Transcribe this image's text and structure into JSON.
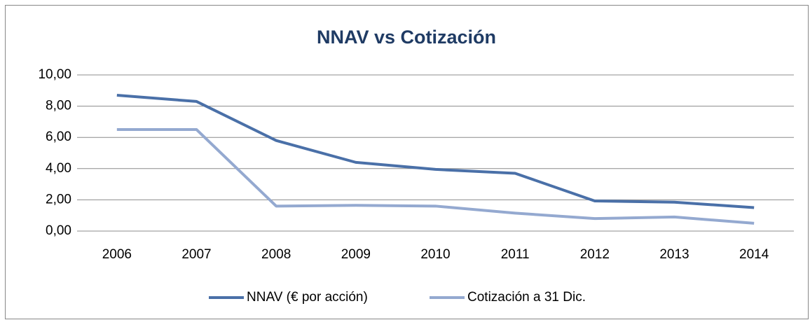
{
  "chart_data": {
    "type": "line",
    "title": "NNAV vs Cotización",
    "categories": [
      "2006",
      "2007",
      "2008",
      "2009",
      "2010",
      "2011",
      "2012",
      "2013",
      "2014"
    ],
    "series": [
      {
        "name": "NNAV (€ por acción)",
        "color": "#4a70a8",
        "values": [
          8.7,
          8.3,
          5.8,
          4.4,
          3.95,
          3.7,
          1.93,
          1.85,
          1.5
        ]
      },
      {
        "name": "Cotización a 31 Dic.",
        "color": "#94a9d0",
        "values": [
          6.5,
          6.5,
          1.6,
          1.65,
          1.6,
          1.15,
          0.8,
          0.9,
          0.5
        ]
      }
    ],
    "ylim": [
      0,
      10
    ],
    "yticks": [
      {
        "value": 0,
        "label": "0,00"
      },
      {
        "value": 2,
        "label": "2,00"
      },
      {
        "value": 4,
        "label": "4,00"
      },
      {
        "value": 6,
        "label": "6,00"
      },
      {
        "value": 8,
        "label": "8,00"
      },
      {
        "value": 10,
        "label": "10,00"
      }
    ],
    "grid": true,
    "legend": "bottom"
  }
}
